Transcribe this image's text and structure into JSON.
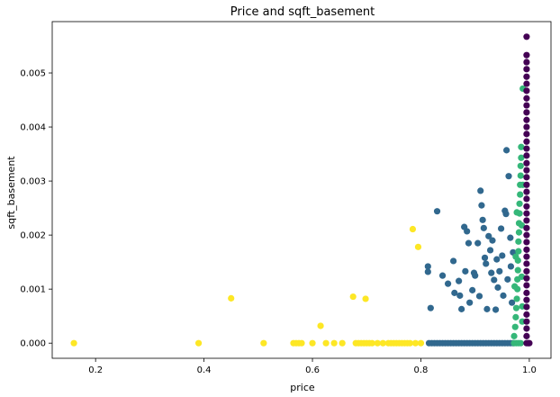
{
  "chart_data": {
    "type": "scatter",
    "title": "Price and sqft_basement",
    "xlabel": "price",
    "ylabel": "sqft_basement",
    "xlim": [
      0.12,
      1.04
    ],
    "ylim": [
      -0.00028,
      0.00595
    ],
    "x_ticks": [
      0.2,
      0.4,
      0.6,
      0.8,
      1.0
    ],
    "x_tick_labels": [
      "0.2",
      "0.4",
      "0.6",
      "0.8",
      "1.0"
    ],
    "y_ticks": [
      0.0,
      0.001,
      0.002,
      0.003,
      0.004,
      0.005
    ],
    "y_tick_labels": [
      "0.000",
      "0.001",
      "0.002",
      "0.003",
      "0.004",
      "0.005"
    ],
    "grid": false,
    "legend": "none",
    "colors": {
      "cluster_purple": "#440154",
      "cluster_blue": "#31688e",
      "cluster_green": "#35b779",
      "cluster_yellow": "#fde725"
    },
    "series": [
      {
        "color": "#fde725",
        "points": [
          [
            0.16,
            0.0
          ],
          [
            0.39,
            0.0
          ],
          [
            0.45,
            0.00083
          ],
          [
            0.51,
            0.0
          ],
          [
            0.565,
            0.0
          ],
          [
            0.57,
            0.0
          ],
          [
            0.575,
            0.0
          ],
          [
            0.58,
            0.0
          ],
          [
            0.6,
            0.0
          ],
          [
            0.615,
            0.00032
          ],
          [
            0.625,
            0.0
          ],
          [
            0.64,
            0.0
          ],
          [
            0.655,
            0.0
          ],
          [
            0.675,
            0.00086
          ],
          [
            0.68,
            0.0
          ],
          [
            0.685,
            0.0
          ],
          [
            0.69,
            0.0
          ],
          [
            0.695,
            0.0
          ],
          [
            0.698,
            0.00082
          ],
          [
            0.7,
            0.0
          ],
          [
            0.705,
            0.0
          ],
          [
            0.71,
            0.0
          ],
          [
            0.72,
            0.0
          ],
          [
            0.73,
            0.0
          ],
          [
            0.74,
            0.0
          ],
          [
            0.745,
            0.0
          ],
          [
            0.75,
            0.0
          ],
          [
            0.755,
            0.0
          ],
          [
            0.76,
            0.0
          ],
          [
            0.765,
            0.0
          ],
          [
            0.77,
            0.0
          ],
          [
            0.775,
            0.0
          ],
          [
            0.78,
            0.0
          ],
          [
            0.785,
            0.00211
          ],
          [
            0.79,
            0.0
          ],
          [
            0.795,
            0.00178
          ],
          [
            0.8,
            0.0
          ]
        ]
      },
      {
        "color": "#31688e",
        "points": [
          [
            0.815,
            0.0
          ],
          [
            0.82,
            0.0
          ],
          [
            0.825,
            0.0
          ],
          [
            0.83,
            0.0
          ],
          [
            0.835,
            0.0
          ],
          [
            0.84,
            0.0
          ],
          [
            0.845,
            0.0
          ],
          [
            0.85,
            0.0
          ],
          [
            0.855,
            0.0
          ],
          [
            0.86,
            0.0
          ],
          [
            0.865,
            0.0
          ],
          [
            0.87,
            0.0
          ],
          [
            0.875,
            0.0
          ],
          [
            0.88,
            0.0
          ],
          [
            0.885,
            0.0
          ],
          [
            0.89,
            0.0
          ],
          [
            0.895,
            0.0
          ],
          [
            0.9,
            0.0
          ],
          [
            0.905,
            0.0
          ],
          [
            0.91,
            0.0
          ],
          [
            0.915,
            0.0
          ],
          [
            0.92,
            0.0
          ],
          [
            0.925,
            0.0
          ],
          [
            0.93,
            0.0
          ],
          [
            0.935,
            0.0
          ],
          [
            0.94,
            0.0
          ],
          [
            0.945,
            0.0
          ],
          [
            0.95,
            0.0
          ],
          [
            0.955,
            0.0
          ],
          [
            0.96,
            0.0
          ],
          [
            0.965,
            0.0
          ],
          [
            0.97,
            0.0
          ],
          [
            0.813,
            0.00142
          ],
          [
            0.813,
            0.00132
          ],
          [
            0.818,
            0.00065
          ],
          [
            0.83,
            0.00244
          ],
          [
            0.84,
            0.00125
          ],
          [
            0.85,
            0.0011
          ],
          [
            0.86,
            0.00152
          ],
          [
            0.862,
            0.00093
          ],
          [
            0.87,
            0.00115
          ],
          [
            0.872,
            0.00088
          ],
          [
            0.875,
            0.00063
          ],
          [
            0.88,
            0.00215
          ],
          [
            0.882,
            0.00133
          ],
          [
            0.885,
            0.00207
          ],
          [
            0.888,
            0.00185
          ],
          [
            0.89,
            0.00075
          ],
          [
            0.895,
            0.00098
          ],
          [
            0.898,
            0.0013
          ],
          [
            0.9,
            0.00125
          ],
          [
            0.905,
            0.00185
          ],
          [
            0.908,
            0.00087
          ],
          [
            0.91,
            0.00282
          ],
          [
            0.912,
            0.00255
          ],
          [
            0.914,
            0.00228
          ],
          [
            0.916,
            0.00213
          ],
          [
            0.918,
            0.00158
          ],
          [
            0.92,
            0.00147
          ],
          [
            0.922,
            0.00063
          ],
          [
            0.925,
            0.00198
          ],
          [
            0.928,
            0.00172
          ],
          [
            0.93,
            0.0013
          ],
          [
            0.932,
            0.0019
          ],
          [
            0.935,
            0.00117
          ],
          [
            0.938,
            0.00062
          ],
          [
            0.94,
            0.00155
          ],
          [
            0.942,
            0.00103
          ],
          [
            0.945,
            0.00133
          ],
          [
            0.948,
            0.00212
          ],
          [
            0.95,
            0.00162
          ],
          [
            0.952,
            0.00088
          ],
          [
            0.955,
            0.00245
          ],
          [
            0.957,
            0.00239
          ],
          [
            0.958,
            0.00357
          ],
          [
            0.96,
            0.00118
          ],
          [
            0.962,
            0.00309
          ],
          [
            0.965,
            0.00195
          ],
          [
            0.966,
            0.00142
          ],
          [
            0.968,
            0.00075
          ],
          [
            0.97,
            0.00168
          ]
        ]
      },
      {
        "color": "#35b779",
        "points": [
          [
            0.972,
            0.00013
          ],
          [
            0.974,
            0.0003
          ],
          [
            0.975,
            0.00048
          ],
          [
            0.976,
            0.00065
          ],
          [
            0.977,
            0.00082
          ],
          [
            0.978,
            0.001
          ],
          [
            0.978,
            0.00118
          ],
          [
            0.979,
            0.00135
          ],
          [
            0.979,
            0.00153
          ],
          [
            0.98,
            0.0017
          ],
          [
            0.98,
            0.00188
          ],
          [
            0.981,
            0.00205
          ],
          [
            0.981,
            0.00222
          ],
          [
            0.982,
            0.0024
          ],
          [
            0.982,
            0.00258
          ],
          [
            0.983,
            0.00275
          ],
          [
            0.983,
            0.00293
          ],
          [
            0.984,
            0.0031
          ],
          [
            0.984,
            0.00328
          ],
          [
            0.985,
            0.00343
          ],
          [
            0.985,
            0.00363
          ],
          [
            0.986,
            0.00218
          ],
          [
            0.986,
            0.00123
          ],
          [
            0.987,
            0.0004
          ],
          [
            0.987,
            0.00068
          ],
          [
            0.988,
            0.00471
          ],
          [
            0.988,
            0.00293
          ],
          [
            0.973,
            0.00105
          ],
          [
            0.975,
            0.0016
          ],
          [
            0.977,
            0.00242
          ],
          [
            0.972,
            0.0
          ],
          [
            0.976,
            0.0
          ],
          [
            0.98,
            0.0
          ],
          [
            0.984,
            0.0
          ]
        ]
      },
      {
        "color": "#440154",
        "points": [
          [
            0.995,
            0.0
          ],
          [
            0.995,
            0.00013
          ],
          [
            0.995,
            0.00027
          ],
          [
            0.995,
            0.0004
          ],
          [
            0.995,
            0.00053
          ],
          [
            0.995,
            0.00067
          ],
          [
            0.995,
            0.0008
          ],
          [
            0.995,
            0.00093
          ],
          [
            0.995,
            0.00107
          ],
          [
            0.995,
            0.0012
          ],
          [
            0.995,
            0.00133
          ],
          [
            0.995,
            0.00147
          ],
          [
            0.995,
            0.0016
          ],
          [
            0.995,
            0.00173
          ],
          [
            0.995,
            0.00187
          ],
          [
            0.995,
            0.002
          ],
          [
            0.995,
            0.00213
          ],
          [
            0.995,
            0.00227
          ],
          [
            0.995,
            0.0024
          ],
          [
            0.995,
            0.00253
          ],
          [
            0.995,
            0.00267
          ],
          [
            0.995,
            0.0028
          ],
          [
            0.995,
            0.00293
          ],
          [
            0.995,
            0.00307
          ],
          [
            0.995,
            0.0032
          ],
          [
            0.995,
            0.00333
          ],
          [
            0.995,
            0.00347
          ],
          [
            0.995,
            0.0036
          ],
          [
            0.995,
            0.00373
          ],
          [
            0.995,
            0.00387
          ],
          [
            0.995,
            0.004
          ],
          [
            0.995,
            0.00413
          ],
          [
            0.995,
            0.00427
          ],
          [
            0.995,
            0.0044
          ],
          [
            0.995,
            0.00453
          ],
          [
            0.995,
            0.00467
          ],
          [
            0.995,
            0.0048
          ],
          [
            0.995,
            0.00493
          ],
          [
            0.995,
            0.00507
          ],
          [
            0.995,
            0.0052
          ],
          [
            0.995,
            0.00533
          ],
          [
            0.995,
            0.00567
          ],
          [
            0.998,
            0.0
          ],
          [
            1.0,
            0.0
          ]
        ]
      }
    ]
  }
}
